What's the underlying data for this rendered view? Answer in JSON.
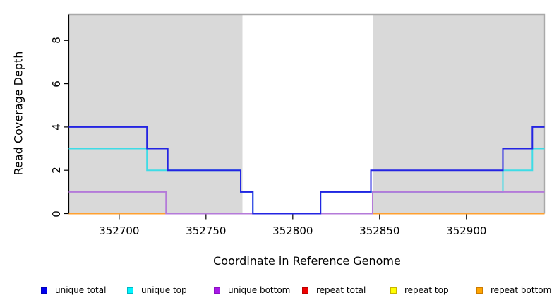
{
  "chart_data": {
    "type": "line",
    "subtype": "step",
    "title": "",
    "xlabel": "Coordinate in Reference Genome",
    "ylabel": "Read Coverage Depth",
    "xlim": [
      352671,
      352945
    ],
    "ylim": [
      0,
      9.2
    ],
    "x_ticks": [
      "352700",
      "352750",
      "352800",
      "352850",
      "352900"
    ],
    "x_tick_values": [
      352700,
      352750,
      352800,
      352850,
      352900
    ],
    "y_ticks": [
      "0",
      "2",
      "4",
      "6",
      "8"
    ],
    "y_tick_values": [
      0,
      2,
      4,
      6,
      8
    ],
    "grid": false,
    "legend_position": "bottom",
    "panel_border_color": "#a9a9a9",
    "axis_color": "#000000",
    "background_bands": [
      {
        "name": "unique-region-left",
        "from": 352671,
        "to": 352771,
        "color": "#d9d9d9"
      },
      {
        "name": "repeat-gap",
        "from": 352771,
        "to": 352846,
        "color": "#ffffff"
      },
      {
        "name": "unique-region-right",
        "from": 352846,
        "to": 352945,
        "color": "#d9d9d9"
      }
    ],
    "series": [
      {
        "name": "unique total",
        "color": "#2424e2",
        "swatch_fill": "#0000ee",
        "swatch_border": "#0000bb",
        "points": [
          [
            352671,
            4
          ],
          [
            352716,
            3
          ],
          [
            352728,
            2
          ],
          [
            352770,
            1
          ],
          [
            352777,
            0
          ],
          [
            352816,
            1
          ],
          [
            352845,
            2
          ],
          [
            352921,
            3
          ],
          [
            352938,
            4
          ]
        ],
        "end": 352945
      },
      {
        "name": "unique top",
        "color": "#3edce6",
        "swatch_fill": "#00f5ff",
        "swatch_border": "#00b8c4",
        "points": [
          [
            352671,
            3
          ],
          [
            352716,
            2
          ],
          [
            352770,
            1
          ],
          [
            352777,
            0
          ],
          [
            352816,
            1
          ],
          [
            352921,
            2
          ],
          [
            352938,
            3
          ]
        ],
        "end": 352945
      },
      {
        "name": "unique bottom",
        "color": "#b47ad9",
        "swatch_fill": "#a818e8",
        "swatch_border": "#8a10c0",
        "points": [
          [
            352671,
            1
          ],
          [
            352727,
            0
          ],
          [
            352846,
            1
          ]
        ],
        "end": 352945
      },
      {
        "name": "repeat total",
        "color": "#e03a3a",
        "swatch_fill": "#ee0000",
        "swatch_border": "#bb0000",
        "points": [
          [
            352671,
            0
          ]
        ],
        "end": 352945
      },
      {
        "name": "repeat top",
        "color": "#ffeb3b",
        "swatch_fill": "#ffff00",
        "swatch_border": "#c8b400",
        "points": [
          [
            352671,
            0
          ]
        ],
        "end": 352945
      },
      {
        "name": "repeat bottom",
        "color": "#ffa030",
        "swatch_fill": "#ffa500",
        "swatch_border": "#cc7a00",
        "points": [
          [
            352671,
            0
          ]
        ],
        "end": 352945
      }
    ],
    "draw_order": [
      "repeat top",
      "repeat total",
      "repeat bottom",
      "unique top",
      "unique bottom",
      "unique total"
    ]
  }
}
